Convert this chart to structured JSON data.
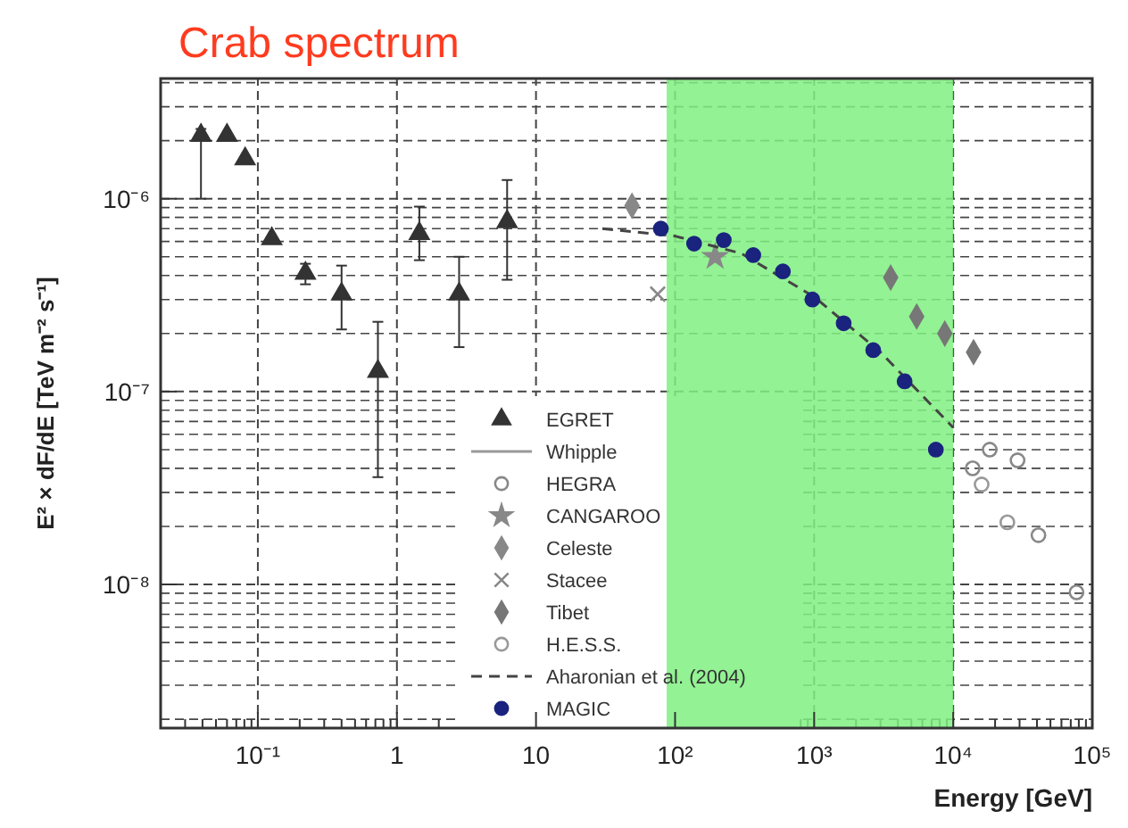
{
  "chart_data": {
    "type": "scatter",
    "title": "Crab spectrum",
    "xlabel": "Energy [GeV]",
    "ylabel": "E² × dF/dE [TeV m⁻² s⁻¹]",
    "log": "xy",
    "grid": true,
    "legend": "bottom",
    "xlim": [
      0.02,
      100000
    ],
    "ylim": [
      1.8e-09,
      4.2e-06
    ],
    "xticks": [
      {
        "value": 0.1,
        "label": "10⁻¹"
      },
      1,
      10,
      {
        "value": 100,
        "label": "10²"
      },
      {
        "value": 1000,
        "label": "10³"
      },
      {
        "value": 10000,
        "label": "10⁴"
      },
      {
        "value": 100000,
        "label": "10⁵"
      }
    ],
    "yticks": [
      {
        "value": 1e-08,
        "label": "10⁻⁸"
      },
      {
        "value": 1e-07,
        "label": "10⁻⁷"
      },
      {
        "value": 1e-06,
        "label": "10⁻⁶"
      }
    ],
    "bands": [
      {
        "axis": "x",
        "from": 87,
        "to": 10000,
        "color": "#80f080"
      }
    ],
    "series": [
      {
        "name": "EGRET",
        "marker": "triangle",
        "color": "#333333",
        "x": [
          0.039,
          0.06,
          0.081,
          0.126,
          0.22,
          0.4,
          0.73,
          1.45,
          2.8,
          6.2
        ],
        "values": [
          2.13e-06,
          2.13e-06,
          1.61e-06,
          6.2e-07,
          4.1e-07,
          3.2e-07,
          1.27e-07,
          6.6e-07,
          3.2e-07,
          7.6e-07
        ],
        "errors": [
          [
            1e-06,
            2.3e-06
          ],
          null,
          null,
          null,
          [
            3.6e-07,
            4.6e-07
          ],
          [
            2.1e-07,
            4.5e-07
          ],
          [
            3.6e-08,
            2.3e-07
          ],
          [
            4.8e-07,
            9.1e-07
          ],
          [
            1.7e-07,
            5e-07
          ],
          [
            3.8e-07,
            1.25e-06
          ]
        ]
      },
      {
        "name": "Whipple",
        "type": "line",
        "line_style": "solid",
        "marker": "none",
        "color": "#999999"
      },
      {
        "name": "HEGRA",
        "marker": "circle",
        "color": "#888888",
        "x": [
          13800,
          18300,
          29000,
          41000,
          77000
        ],
        "values": [
          4e-08,
          5e-08,
          4.4e-08,
          1.8e-08,
          9.1e-09
        ]
      },
      {
        "name": "CANGAROO",
        "marker": "star",
        "color": "#888888",
        "x": [
          194
        ],
        "values": [
          5e-07
        ]
      },
      {
        "name": "Celeste",
        "marker": "diamond",
        "color": "#888888",
        "x": [
          49
        ],
        "values": [
          9.2e-07
        ]
      },
      {
        "name": "Stacee",
        "marker": "cross",
        "color": "#888888",
        "x": [
          75
        ],
        "values": [
          3.2e-07
        ]
      },
      {
        "name": "Tibet",
        "marker": "diamond",
        "color": "#777777",
        "x": [
          3550,
          5460,
          8700,
          14000
        ],
        "values": [
          3.9e-07,
          2.45e-07,
          2e-07,
          1.6e-07
        ]
      },
      {
        "name": "H.E.S.S.",
        "marker": "circle",
        "color": "#999999",
        "x": [
          16000,
          24500
        ],
        "values": [
          3.3e-08,
          2.1e-08
        ]
      },
      {
        "name": "Aharonian et al. (2004)",
        "type": "line",
        "line_style": "dashed",
        "marker": "none",
        "color": "#444444",
        "x": [
          30,
          100,
          300,
          1000,
          3000,
          10000
        ],
        "values": [
          7e-07,
          6.4e-07,
          5.2e-07,
          3.1e-07,
          1.6e-07,
          6.5e-08
        ]
      },
      {
        "name": "MAGIC",
        "marker": "circle",
        "color": "#1a237e",
        "x": [
          79,
          137,
          224,
          365,
          596,
          971,
          1630,
          2660,
          4470,
          7500
        ],
        "values": [
          7e-07,
          5.85e-07,
          6.1e-07,
          5.1e-07,
          4.2e-07,
          3e-07,
          2.26e-07,
          1.64e-07,
          1.13e-07,
          5e-08
        ]
      }
    ]
  }
}
